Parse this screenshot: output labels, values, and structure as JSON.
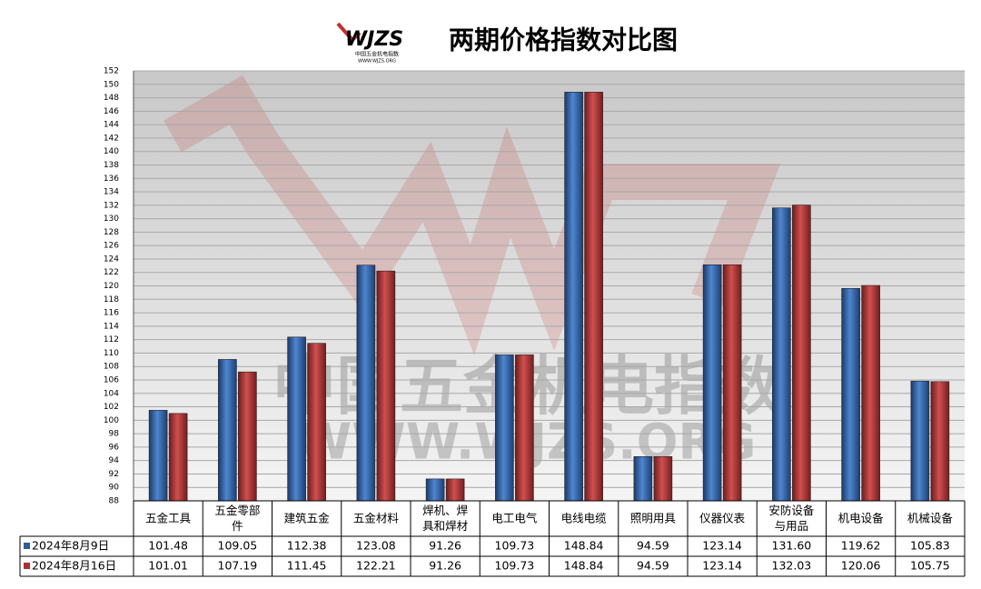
{
  "chart_data": {
    "type": "bar",
    "title": "两期价格指数对比图",
    "logo": {
      "mark": "WJZS",
      "caption": "中国五金机电指数",
      "url": "WWW.WJZS.ORG"
    },
    "watermark": {
      "text": "中国五金机电指数",
      "url": "WWW.WJZS.ORG"
    },
    "categories": [
      "五金工具",
      "五金零部件",
      "建筑五金",
      "五金材料",
      "焊机、焊具和焊材",
      "电工电气",
      "电线电缆",
      "照明用具",
      "仪器仪表",
      "安防设备与用品",
      "机电设备",
      "机械设备"
    ],
    "series": [
      {
        "name": "2024年8月9日",
        "color": "#2f5d9c",
        "values": [
          101.48,
          109.05,
          112.38,
          123.08,
          91.26,
          109.73,
          148.84,
          94.59,
          123.14,
          131.6,
          119.62,
          105.83
        ],
        "value_labels": [
          "101.48",
          "109.05",
          "112.38",
          "123.08",
          "91.26",
          "109.73",
          "148.84",
          "94.59",
          "123.14",
          "131.60",
          "119.62",
          "105.83"
        ]
      },
      {
        "name": "2024年8月16日",
        "color": "#a83232",
        "values": [
          101.01,
          107.19,
          111.45,
          122.21,
          91.26,
          109.73,
          148.84,
          94.59,
          123.14,
          132.03,
          120.06,
          105.75
        ],
        "value_labels": [
          "101.01",
          "107.19",
          "111.45",
          "122.21",
          "91.26",
          "109.73",
          "148.84",
          "94.59",
          "123.14",
          "132.03",
          "120.06",
          "105.75"
        ]
      }
    ],
    "ylim": [
      88,
      152
    ],
    "yticks": [
      88,
      90,
      92,
      94,
      96,
      98,
      100,
      102,
      104,
      106,
      108,
      110,
      112,
      114,
      116,
      118,
      120,
      122,
      124,
      126,
      128,
      130,
      132,
      134,
      136,
      138,
      140,
      142,
      144,
      146,
      148,
      150,
      152
    ],
    "grid": true
  }
}
